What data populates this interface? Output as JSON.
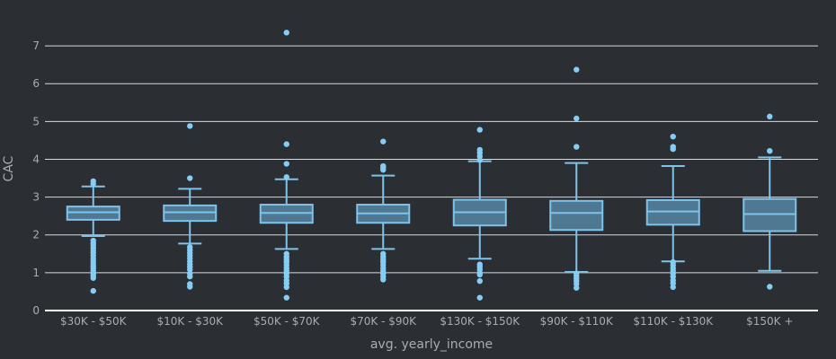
{
  "chart_data": {
    "type": "box",
    "xlabel": "avg. yearly_income",
    "ylabel": "CAC",
    "ylim": [
      0,
      7.5
    ],
    "yticks": [
      0,
      1,
      2,
      3,
      4,
      5,
      6,
      7
    ],
    "grid": true,
    "categories": [
      "$30K - $50K",
      "$10K - $30K",
      "$50K - $70K",
      "$70K - $90K",
      "$130K - $150K",
      "$90K - $110K",
      "$110K - $130K",
      "$150K +"
    ],
    "boxes": [
      {
        "category": "$30K - $50K",
        "min": 1.97,
        "q1": 2.4,
        "median": 2.6,
        "q3": 2.75,
        "max": 3.28,
        "outliers": [
          3.35,
          3.42,
          1.85,
          1.78,
          1.72,
          1.65,
          1.58,
          1.52,
          1.45,
          1.38,
          1.32,
          1.25,
          1.18,
          1.12,
          1.05,
          0.98,
          0.92,
          0.86,
          0.52
        ]
      },
      {
        "category": "$10K - $30K",
        "min": 1.77,
        "q1": 2.37,
        "median": 2.6,
        "q3": 2.78,
        "max": 3.22,
        "outliers": [
          4.88,
          3.5,
          1.68,
          1.6,
          1.52,
          1.45,
          1.38,
          1.3,
          1.22,
          1.15,
          1.08,
          0.98,
          0.9,
          0.7,
          0.63
        ]
      },
      {
        "category": "$50K - $70K",
        "min": 1.63,
        "q1": 2.32,
        "median": 2.58,
        "q3": 2.8,
        "max": 3.47,
        "outliers": [
          7.35,
          4.4,
          3.88,
          3.53,
          1.5,
          1.42,
          1.35,
          1.28,
          1.2,
          1.12,
          1.05,
          0.98,
          0.9,
          0.8,
          0.72,
          0.62,
          0.34
        ]
      },
      {
        "category": "$70K - $90K",
        "min": 1.63,
        "q1": 2.32,
        "median": 2.57,
        "q3": 2.8,
        "max": 3.57,
        "outliers": [
          4.47,
          3.82,
          3.77,
          3.72,
          1.5,
          1.42,
          1.35,
          1.28,
          1.2,
          1.12,
          1.05,
          0.98,
          0.9,
          0.82
        ]
      },
      {
        "category": "$130K - $150K",
        "min": 1.37,
        "q1": 2.25,
        "median": 2.6,
        "q3": 2.93,
        "max": 3.95,
        "outliers": [
          4.78,
          4.25,
          4.17,
          4.08,
          3.98,
          1.22,
          1.15,
          1.08,
          1.0,
          0.95,
          0.78,
          0.34
        ]
      },
      {
        "category": "$90K - $110K",
        "min": 1.02,
        "q1": 2.13,
        "median": 2.58,
        "q3": 2.9,
        "max": 3.9,
        "outliers": [
          6.37,
          5.08,
          4.33,
          0.98,
          0.92,
          0.85,
          0.78,
          0.7,
          0.6
        ]
      },
      {
        "category": "$110K - $130K",
        "min": 1.3,
        "q1": 2.27,
        "median": 2.62,
        "q3": 2.92,
        "max": 3.82,
        "outliers": [
          4.6,
          4.33,
          4.27,
          1.28,
          1.2,
          1.12,
          1.05,
          0.98,
          0.9,
          0.8,
          0.72,
          0.62
        ]
      },
      {
        "category": "$150K +",
        "min": 1.05,
        "q1": 2.1,
        "median": 2.55,
        "q3": 2.95,
        "max": 4.05,
        "outliers": [
          5.13,
          4.22,
          0.63
        ]
      }
    ],
    "colors": {
      "background": "#2b2e33",
      "grid": "#d8dbe0",
      "zeroline": "#ffffff",
      "box_line": "#7ec3ea",
      "box_fill": "#4f7893",
      "outlier": "#86cdf3",
      "text": "#a8acb3"
    }
  }
}
